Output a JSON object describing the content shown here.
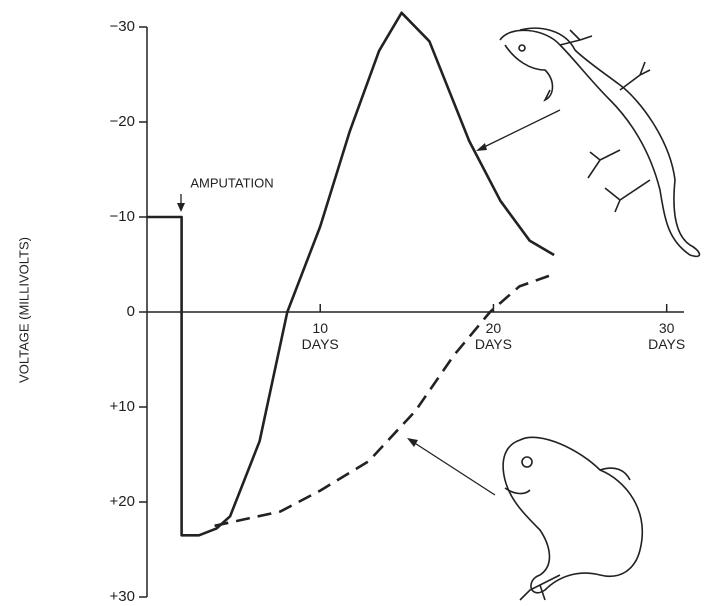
{
  "chart_data": {
    "type": "line",
    "y_axis_label": "VOLTAGE (MILLIVOLTS)",
    "annotation": "AMPUTATION",
    "xlim": [
      0,
      31
    ],
    "xticks": [
      {
        "value": 10,
        "label": "10 DAYS"
      },
      {
        "value": 20,
        "label": "20 DAYS"
      },
      {
        "value": 30,
        "label": "30 DAYS"
      }
    ],
    "ylim": [
      -30,
      30
    ],
    "y_reversed": true,
    "yticks": [
      {
        "value": -30,
        "label": "−30"
      },
      {
        "value": -20,
        "label": "−20"
      },
      {
        "value": -10,
        "label": "−10"
      },
      0,
      {
        "value": 10,
        "label": "+10"
      },
      {
        "value": 20,
        "label": "+20"
      },
      {
        "value": 30,
        "label": "+30"
      }
    ],
    "series": [
      {
        "color": "#222222",
        "dash": false,
        "x": [
          0,
          2,
          2,
          3,
          4,
          4.8,
          6.5,
          8.1,
          10,
          11.7,
          13.4,
          14.7,
          16.3,
          18.6,
          20.4,
          22.1,
          23.5
        ],
        "values": [
          -10,
          -10,
          23.5,
          23.5,
          22.8,
          21.5,
          13.6,
          0,
          -9,
          -19,
          -27.5,
          -31.5,
          -28.5,
          -18,
          -11.7,
          -7.5,
          -6
        ]
      },
      {
        "color": "#222222",
        "dash": true,
        "x": [
          3.9,
          7.7,
          10,
          12.8,
          15.5,
          17.7,
          19.8,
          21.5,
          23.5
        ],
        "values": [
          22.5,
          21,
          18.8,
          15.7,
          10.4,
          4.6,
          0,
          -2.7,
          -4
        ]
      }
    ]
  }
}
